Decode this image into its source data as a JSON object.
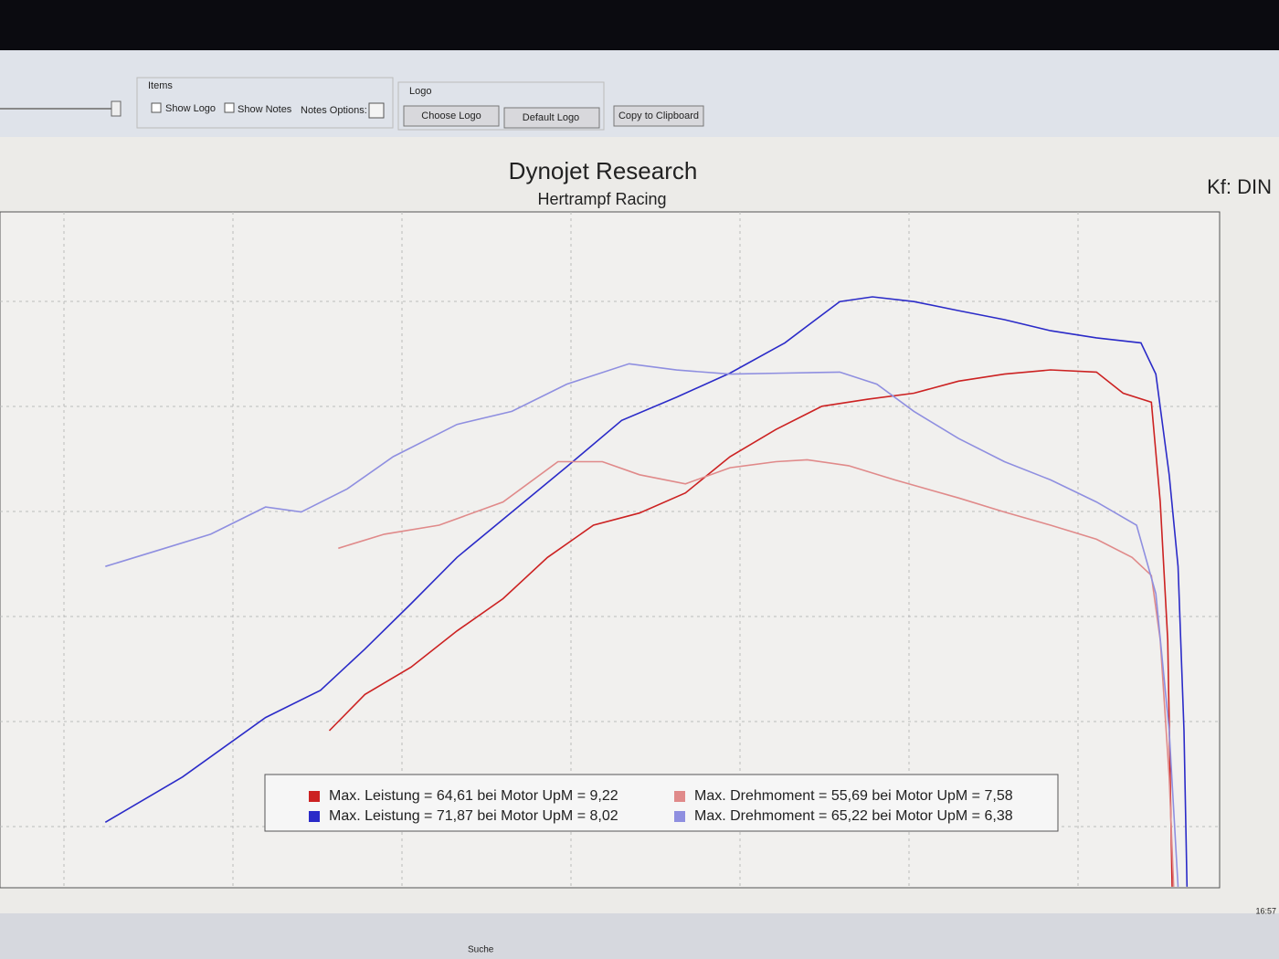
{
  "toolbar": {
    "items_group": "Items",
    "show_logo": "Show Logo",
    "show_notes": "Show Notes",
    "notes_options": "Notes Options:",
    "logo_group": "Logo",
    "choose_logo": "Choose Logo",
    "default_logo": "Default Logo",
    "copy_clipboard": "Copy to Clipboard"
  },
  "chart_data": {
    "type": "line",
    "title": "Dynojet Research",
    "subtitle": "Hertrampf Racing",
    "annotation": "Kf: DIN",
    "xlim": [
      2.14,
      10.36
    ],
    "ylim": [
      13.2,
      80.3
    ],
    "grid": true,
    "legend": "bottom",
    "series": [
      {
        "name": "Max. Leistung = 64,61 bei Motor UpM = 9,22",
        "color": "#cc2222",
        "x": [
          4.36,
          4.6,
          4.91,
          5.22,
          5.53,
          5.83,
          6.14,
          6.45,
          6.76,
          7.06,
          7.37,
          7.68,
          7.99,
          8.3,
          8.6,
          8.91,
          9.22,
          9.53,
          9.71,
          9.9,
          9.96,
          10.01,
          10.04
        ],
        "values": [
          28.8,
          32.4,
          35.1,
          38.7,
          41.9,
          46.0,
          49.2,
          50.4,
          52.4,
          56.0,
          58.7,
          61.0,
          61.7,
          62.3,
          63.5,
          64.2,
          64.61,
          64.4,
          62.3,
          61.4,
          51.5,
          37.8,
          13.3
        ]
      },
      {
        "name": "Max. Leistung = 71,87 bei Motor UpM = 8,02",
        "color": "#2b2bc8",
        "x": [
          2.85,
          3.37,
          3.93,
          4.3,
          4.6,
          4.91,
          5.22,
          5.59,
          5.96,
          6.33,
          6.7,
          7.06,
          7.43,
          7.8,
          8.02,
          8.3,
          8.6,
          8.91,
          9.22,
          9.53,
          9.83,
          9.93,
          10.02,
          10.08,
          10.12,
          10.14
        ],
        "values": [
          19.7,
          24.2,
          30.1,
          32.8,
          36.9,
          41.4,
          46.0,
          50.5,
          55.0,
          59.6,
          61.9,
          64.3,
          67.3,
          71.4,
          71.87,
          71.4,
          70.5,
          69.6,
          68.5,
          67.8,
          67.3,
          64.2,
          54.2,
          45.1,
          28.8,
          13.3
        ]
      },
      {
        "name": "Max. Drehmoment = 55,69 bei Motor UpM = 7,58",
        "color": "#e08a8a",
        "x": [
          4.42,
          4.73,
          5.1,
          5.53,
          5.9,
          6.2,
          6.45,
          6.76,
          7.06,
          7.37,
          7.58,
          7.86,
          8.17,
          8.6,
          8.91,
          9.22,
          9.53,
          9.77,
          9.9,
          9.96,
          10.02,
          10.05
        ],
        "values": [
          46.9,
          48.3,
          49.2,
          51.5,
          55.5,
          55.5,
          54.2,
          53.3,
          54.9,
          55.5,
          55.69,
          55.1,
          53.7,
          51.9,
          50.5,
          49.2,
          47.8,
          46.0,
          44.2,
          37.8,
          24.2,
          13.3
        ]
      },
      {
        "name": "Max. Drehmoment = 65,22 bei Motor UpM = 6,38",
        "color": "#8f8fe0",
        "x": [
          2.85,
          3.25,
          3.56,
          3.93,
          4.17,
          4.48,
          4.79,
          5.22,
          5.59,
          5.96,
          6.38,
          6.7,
          7.06,
          7.43,
          7.8,
          8.05,
          8.3,
          8.6,
          8.91,
          9.22,
          9.53,
          9.8,
          9.93,
          10.02,
          10.08
        ],
        "values": [
          45.1,
          46.9,
          48.3,
          51.0,
          50.5,
          52.8,
          56.0,
          59.2,
          60.5,
          63.2,
          65.22,
          64.6,
          64.2,
          64.3,
          64.4,
          63.2,
          60.5,
          57.8,
          55.5,
          53.7,
          51.5,
          49.2,
          42.4,
          28.8,
          13.3
        ]
      }
    ]
  },
  "taskbar": {
    "search": "Suche",
    "time": "16:57"
  }
}
